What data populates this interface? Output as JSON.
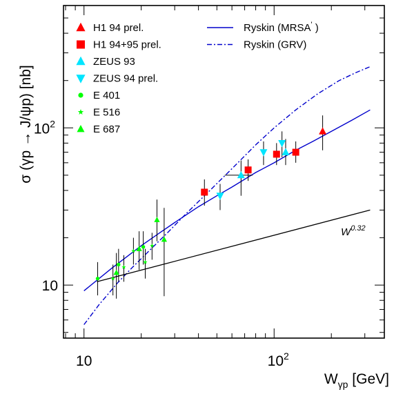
{
  "chart_data": {
    "type": "scatter",
    "title": "",
    "xlabel": "W",
    "xlabel_sub": "γp",
    "xlabel_unit": "[GeV]",
    "ylabel": "σ (γp → J/ψp) [nb]",
    "xscale": "log",
    "yscale": "log",
    "xlim": [
      7.8,
      380
    ],
    "ylim": [
      4.6,
      600
    ],
    "xticklabels": [
      {
        "value": 10,
        "base": "10",
        "exp": ""
      },
      {
        "value": 100,
        "base": "10",
        "exp": "2"
      }
    ],
    "yticklabels": [
      {
        "value": 10,
        "base": "10",
        "exp": ""
      },
      {
        "value": 100,
        "base": "10",
        "exp": "2"
      }
    ],
    "legend_placement": "top-left",
    "annotation": {
      "text": "W",
      "sup": "0.32",
      "x": 190,
      "y": 22
    },
    "series": [
      {
        "name": "H1 94 prel.",
        "marker": "triangle-up",
        "color": "#ff0000",
        "points": [
          {
            "x": 180,
            "y": 95,
            "ylo": 72,
            "yhi": 120
          }
        ]
      },
      {
        "name": "H1 94+95 prel.",
        "marker": "square",
        "color": "#ff0000",
        "points": [
          {
            "x": 43,
            "y": 39,
            "ylo": 32,
            "yhi": 47
          },
          {
            "x": 73,
            "y": 54,
            "ylo": 46,
            "yhi": 63
          },
          {
            "x": 103,
            "y": 68,
            "ylo": 58,
            "yhi": 80
          },
          {
            "x": 130,
            "y": 70,
            "ylo": 60,
            "yhi": 82
          }
        ]
      },
      {
        "name": "ZEUS 93",
        "marker": "triangle-up",
        "color": "#00e5ff",
        "points": [
          {
            "x": 67,
            "y": 50,
            "ylo": 37,
            "yhi": 62,
            "xlo": 55,
            "xhi": 77
          },
          {
            "x": 115,
            "y": 70,
            "ylo": 58,
            "yhi": 85
          }
        ]
      },
      {
        "name": "ZEUS 94 prel.",
        "marker": "triangle-down",
        "color": "#00e5ff",
        "points": [
          {
            "x": 52,
            "y": 37,
            "ylo": 30,
            "yhi": 44
          },
          {
            "x": 88,
            "y": 70,
            "ylo": 58,
            "yhi": 82
          },
          {
            "x": 110,
            "y": 80,
            "ylo": 65,
            "yhi": 95
          }
        ]
      },
      {
        "name": "E 401",
        "marker": "circle",
        "color": "#00ff00",
        "points": [
          {
            "x": 11.8,
            "y": 11,
            "ylo": 8.6,
            "yhi": 14
          },
          {
            "x": 15.2,
            "y": 13.5,
            "ylo": 10.5,
            "yhi": 17
          },
          {
            "x": 20.5,
            "y": 17.5,
            "ylo": 13.5,
            "yhi": 22
          }
        ]
      },
      {
        "name": "E 516",
        "marker": "star",
        "color": "#00ff00",
        "points": [
          {
            "x": 14.2,
            "y": 11,
            "ylo": 8.6,
            "yhi": 13.5
          },
          {
            "x": 16.2,
            "y": 13,
            "ylo": 10.5,
            "yhi": 15.5
          },
          {
            "x": 18.2,
            "y": 16.5,
            "ylo": 13.5,
            "yhi": 20
          },
          {
            "x": 21,
            "y": 14,
            "ylo": 11,
            "yhi": 17
          },
          {
            "x": 22.8,
            "y": 17.8,
            "ylo": 14.5,
            "yhi": 21.5
          }
        ]
      },
      {
        "name": "E 687",
        "marker": "triangle-up",
        "color": "#00ff00",
        "points": [
          {
            "x": 14.8,
            "y": 12,
            "ylo": 8.2,
            "yhi": 16
          },
          {
            "x": 19.5,
            "y": 17,
            "ylo": 12.5,
            "yhi": 22
          },
          {
            "x": 24.2,
            "y": 26,
            "ylo": 19,
            "yhi": 35
          },
          {
            "x": 26.4,
            "y": 19.5,
            "ylo": 8.5,
            "yhi": 31
          }
        ]
      }
    ],
    "curves": [
      {
        "name": "Ryskin (MRSA')",
        "legend_label": "Ryskin (MRSA",
        "legend_sup": "'",
        "legend_suffix": " )",
        "style": "solid",
        "color": "#0000cc",
        "x": [
          10,
          14,
          20,
          25,
          30,
          40,
          50,
          60,
          80,
          100,
          130,
          160,
          200,
          250,
          320
        ],
        "y": [
          9.2,
          12.8,
          17.8,
          21.5,
          25,
          31.5,
          37,
          42,
          52,
          60,
          72,
          82,
          95,
          110,
          130
        ]
      },
      {
        "name": "Ryskin (GRV)",
        "legend_label": "Ryskin (GRV)",
        "legend_sup": "",
        "legend_suffix": "",
        "style": "dashdot",
        "color": "#0000cc",
        "x": [
          10,
          12,
          15,
          18,
          22,
          28,
          35,
          45,
          60,
          80,
          100,
          130,
          170,
          220,
          270,
          320
        ],
        "y": [
          5.6,
          7.5,
          10.3,
          13,
          16.5,
          22,
          29,
          39,
          55,
          78,
          100,
          130,
          165,
          200,
          225,
          245
        ]
      },
      {
        "name": "W^0.32",
        "legend_label": "",
        "legend_sup": "",
        "legend_suffix": "",
        "style": "solid",
        "color": "#000000",
        "x": [
          11.7,
          320
        ],
        "y": [
          10.5,
          30
        ]
      }
    ]
  }
}
